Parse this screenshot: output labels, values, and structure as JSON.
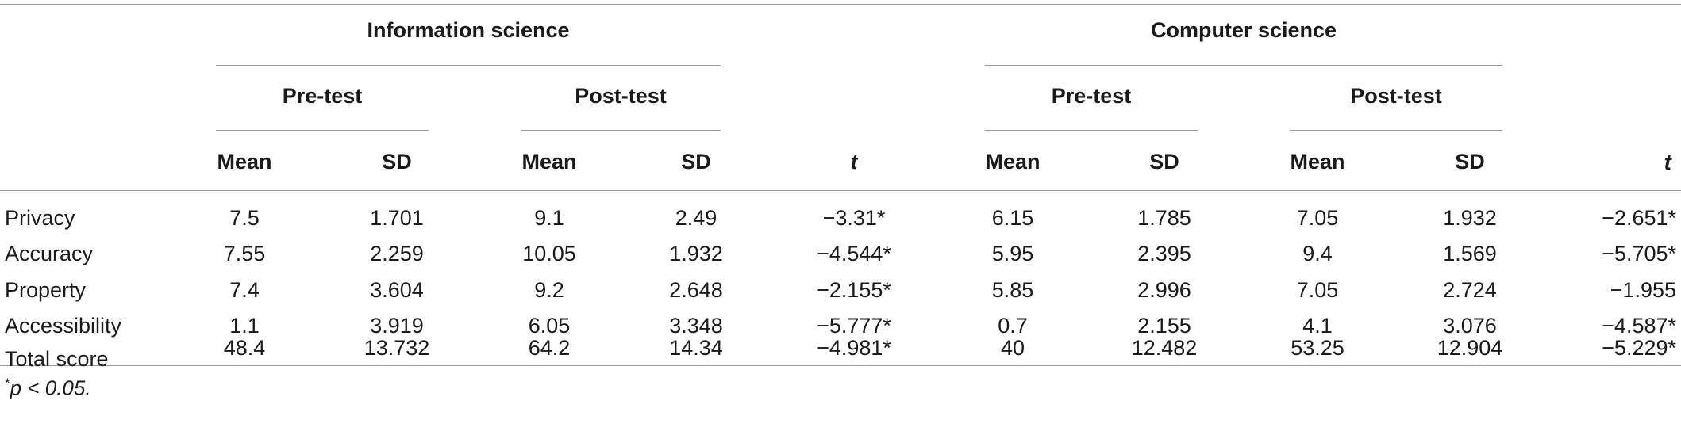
{
  "groups": [
    {
      "title": "Information science",
      "pre_label": "Pre-test",
      "post_label": "Post-test",
      "col_headers": [
        "Mean",
        "SD",
        "Mean",
        "SD",
        "t"
      ]
    },
    {
      "title": "Computer science",
      "pre_label": "Pre-test",
      "post_label": "Post-test",
      "col_headers": [
        "Mean",
        "SD",
        "Mean",
        "SD",
        "t"
      ]
    }
  ],
  "rows": [
    {
      "label": "Privacy",
      "is": [
        "7.5",
        "1.701",
        "9.1",
        "2.49",
        "−3.31*"
      ],
      "cs": [
        "6.15",
        "1.785",
        "7.05",
        "1.932",
        "−2.651*"
      ]
    },
    {
      "label": "Accuracy",
      "is": [
        "7.55",
        "2.259",
        "10.05",
        "1.932",
        "−4.544*"
      ],
      "cs": [
        "5.95",
        "2.395",
        "9.4",
        "1.569",
        "−5.705*"
      ]
    },
    {
      "label": "Property",
      "is": [
        "7.4",
        "3.604",
        "9.2",
        "2.648",
        "−2.155*"
      ],
      "cs": [
        "5.85",
        "2.996",
        "7.05",
        "2.724",
        "−1.955"
      ]
    },
    {
      "label": "Accessibility",
      "is": [
        "1.1",
        "3.919",
        "6.05",
        "3.348",
        "−5.777*"
      ],
      "cs": [
        "0.7",
        "2.155",
        "4.1",
        "3.076",
        "−4.587*"
      ]
    },
    {
      "label": "Total score",
      "is": [
        "48.4",
        "13.732",
        "64.2",
        "14.34",
        "−4.981*"
      ],
      "cs": [
        "40",
        "12.482",
        "53.25",
        "12.904",
        "−5.229*"
      ]
    }
  ],
  "footnote": {
    "star": "*",
    "text": "p < 0.05."
  }
}
